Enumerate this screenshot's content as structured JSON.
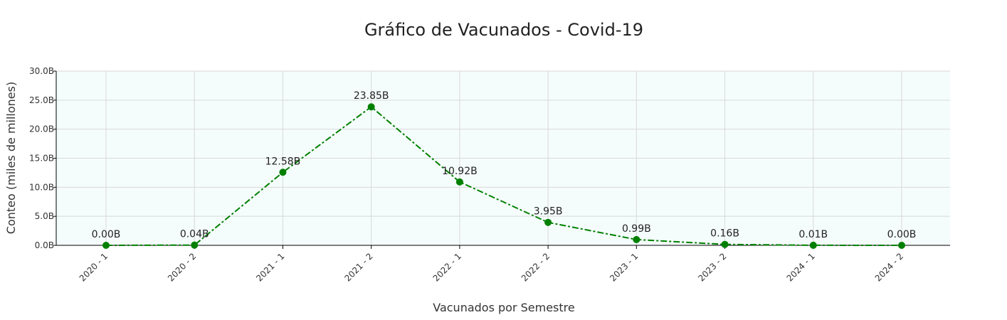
{
  "chart_data": {
    "type": "line",
    "title": "Gráfico de Vacunados - Covid-19",
    "xlabel": "Vacunados por Semestre",
    "ylabel": "Conteo (miles de millones)",
    "categories": [
      "2020 - 1",
      "2020 - 2",
      "2021 - 1",
      "2021 - 2",
      "2022 - 1",
      "2022 - 2",
      "2023 - 1",
      "2023 - 2",
      "2024 - 1",
      "2024 - 2"
    ],
    "series": [
      {
        "values": [
          0.0,
          0.04,
          12.58,
          23.85,
          10.92,
          3.95,
          0.99,
          0.16,
          0.01,
          0.0
        ],
        "labels": [
          "0.00B",
          "0.04B",
          "12.58B",
          "23.85B",
          "10.92B",
          "3.95B",
          "0.99B",
          "0.16B",
          "0.01B",
          "0.00B"
        ],
        "color": "#008000",
        "line_style": "dashdot",
        "marker": "circle"
      }
    ],
    "ylim": [
      0,
      30
    ],
    "yticks": [
      0,
      5,
      10,
      15,
      20,
      25,
      30
    ],
    "ytick_labels": [
      "0.0B",
      "5.0B",
      "10.0B",
      "15.0B",
      "20.0B",
      "25.0B",
      "30.0B"
    ],
    "grid": true,
    "legend": "none",
    "plot_background": "#f5fcfc",
    "grid_color": "#d9d9d9"
  }
}
